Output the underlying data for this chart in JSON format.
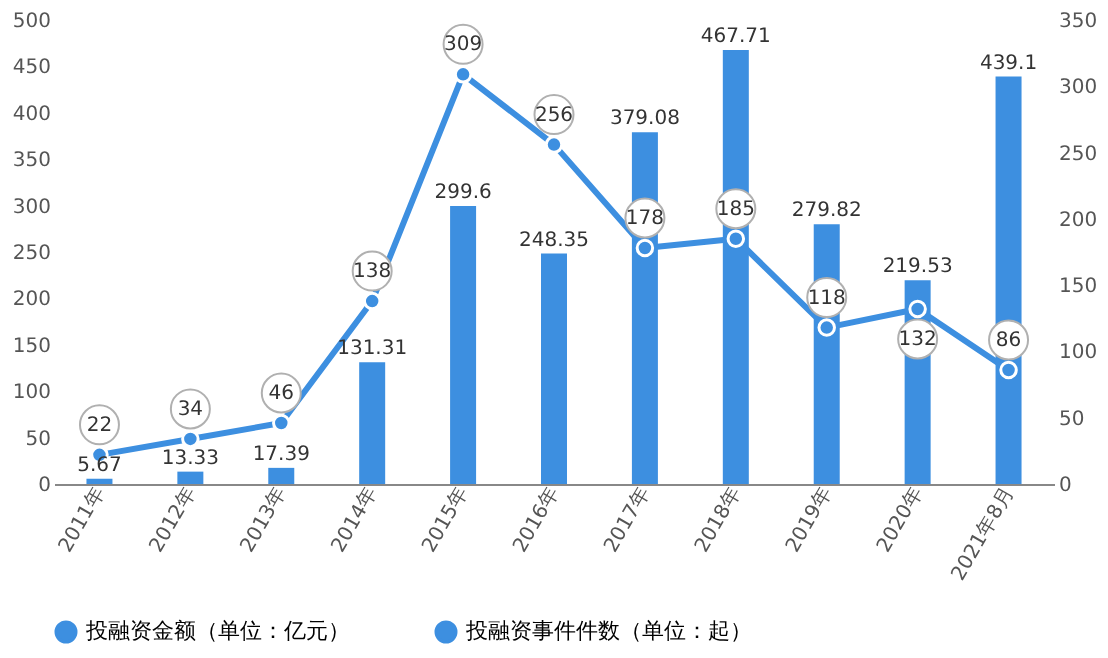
{
  "chart_data": {
    "type": "bar",
    "categories": [
      "2011年",
      "2012年",
      "2013年",
      "2014年",
      "2015年",
      "2016年",
      "2017年",
      "2018年",
      "2019年",
      "2020年",
      "2021年8月"
    ],
    "series": [
      {
        "name": "投融资金额（单位：亿元）",
        "color": "#3d8fe0",
        "values": [
          5.67,
          13.33,
          17.39,
          131.31,
          299.6,
          248.35,
          379.08,
          467.71,
          279.82,
          219.53,
          439.1
        ]
      },
      {
        "name": "投融资事件件数（单位：起）",
        "color": "#3d8fe0",
        "type": "line",
        "axis": "y2",
        "values": [
          22,
          34,
          46,
          138,
          309,
          256,
          178,
          185,
          118,
          132,
          86
        ]
      }
    ],
    "ylim": [
      0,
      500
    ],
    "yticks": [
      0,
      50,
      100,
      150,
      200,
      250,
      300,
      350,
      400,
      450,
      500
    ],
    "y2lim": [
      0,
      350
    ],
    "y2ticks": [
      0,
      50,
      100,
      150,
      200,
      250,
      300,
      350
    ],
    "data_labels": true,
    "legend": "bottom",
    "marker": "circle",
    "grid": false
  }
}
